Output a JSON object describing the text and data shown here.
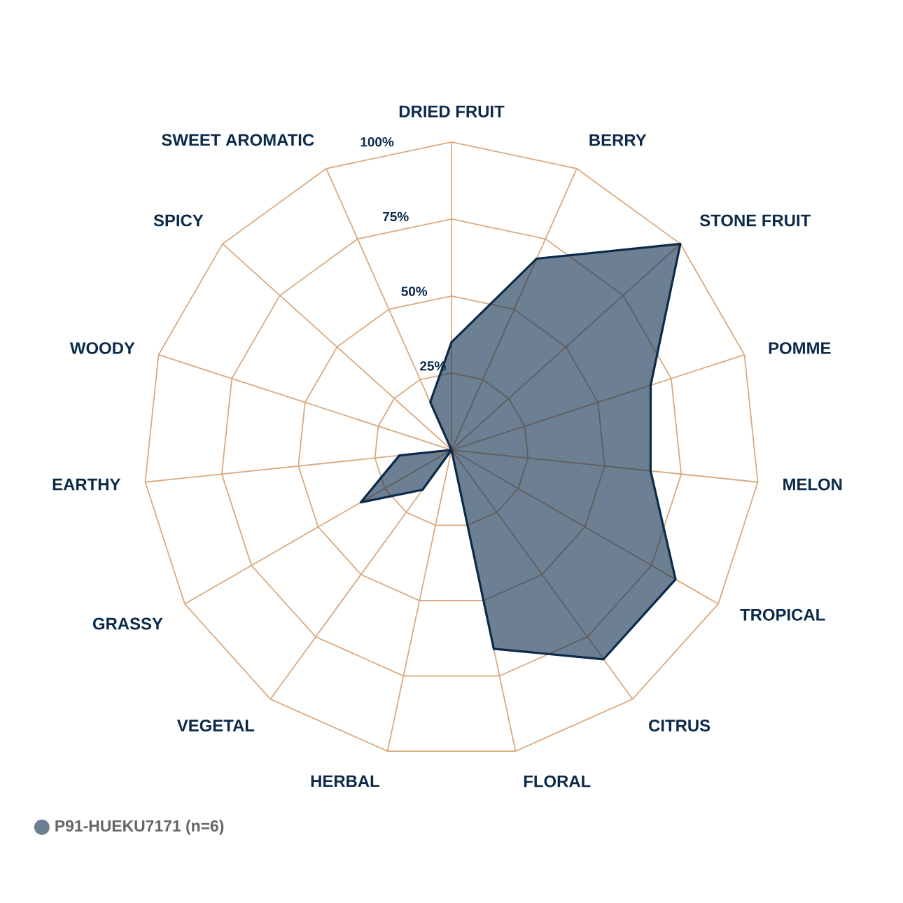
{
  "chart_data": {
    "type": "radar",
    "categories": [
      "DRIED FRUIT",
      "BERRY",
      "STONE FRUIT",
      "POMME",
      "MELON",
      "TROPICAL",
      "CITRUS",
      "FLORAL",
      "HERBAL",
      "VEGETAL",
      "GRASSY",
      "EARTHY",
      "WOODY",
      "SPICY",
      "SWEET AROMATIC"
    ],
    "series": [
      {
        "name": "P91-HUEKU7171 (n=6)",
        "color": "#0b2a4a",
        "values": [
          35,
          68,
          100,
          68,
          65,
          84,
          84,
          66,
          0,
          16,
          34,
          17,
          0,
          0,
          17
        ]
      }
    ],
    "ylim": [
      0,
      100
    ],
    "yticks": [
      {
        "value": 25,
        "label": "25%"
      },
      {
        "value": 50,
        "label": "50%"
      },
      {
        "value": 75,
        "label": "75%"
      },
      {
        "value": 100,
        "label": "100%"
      }
    ],
    "legend": "bottom left"
  }
}
